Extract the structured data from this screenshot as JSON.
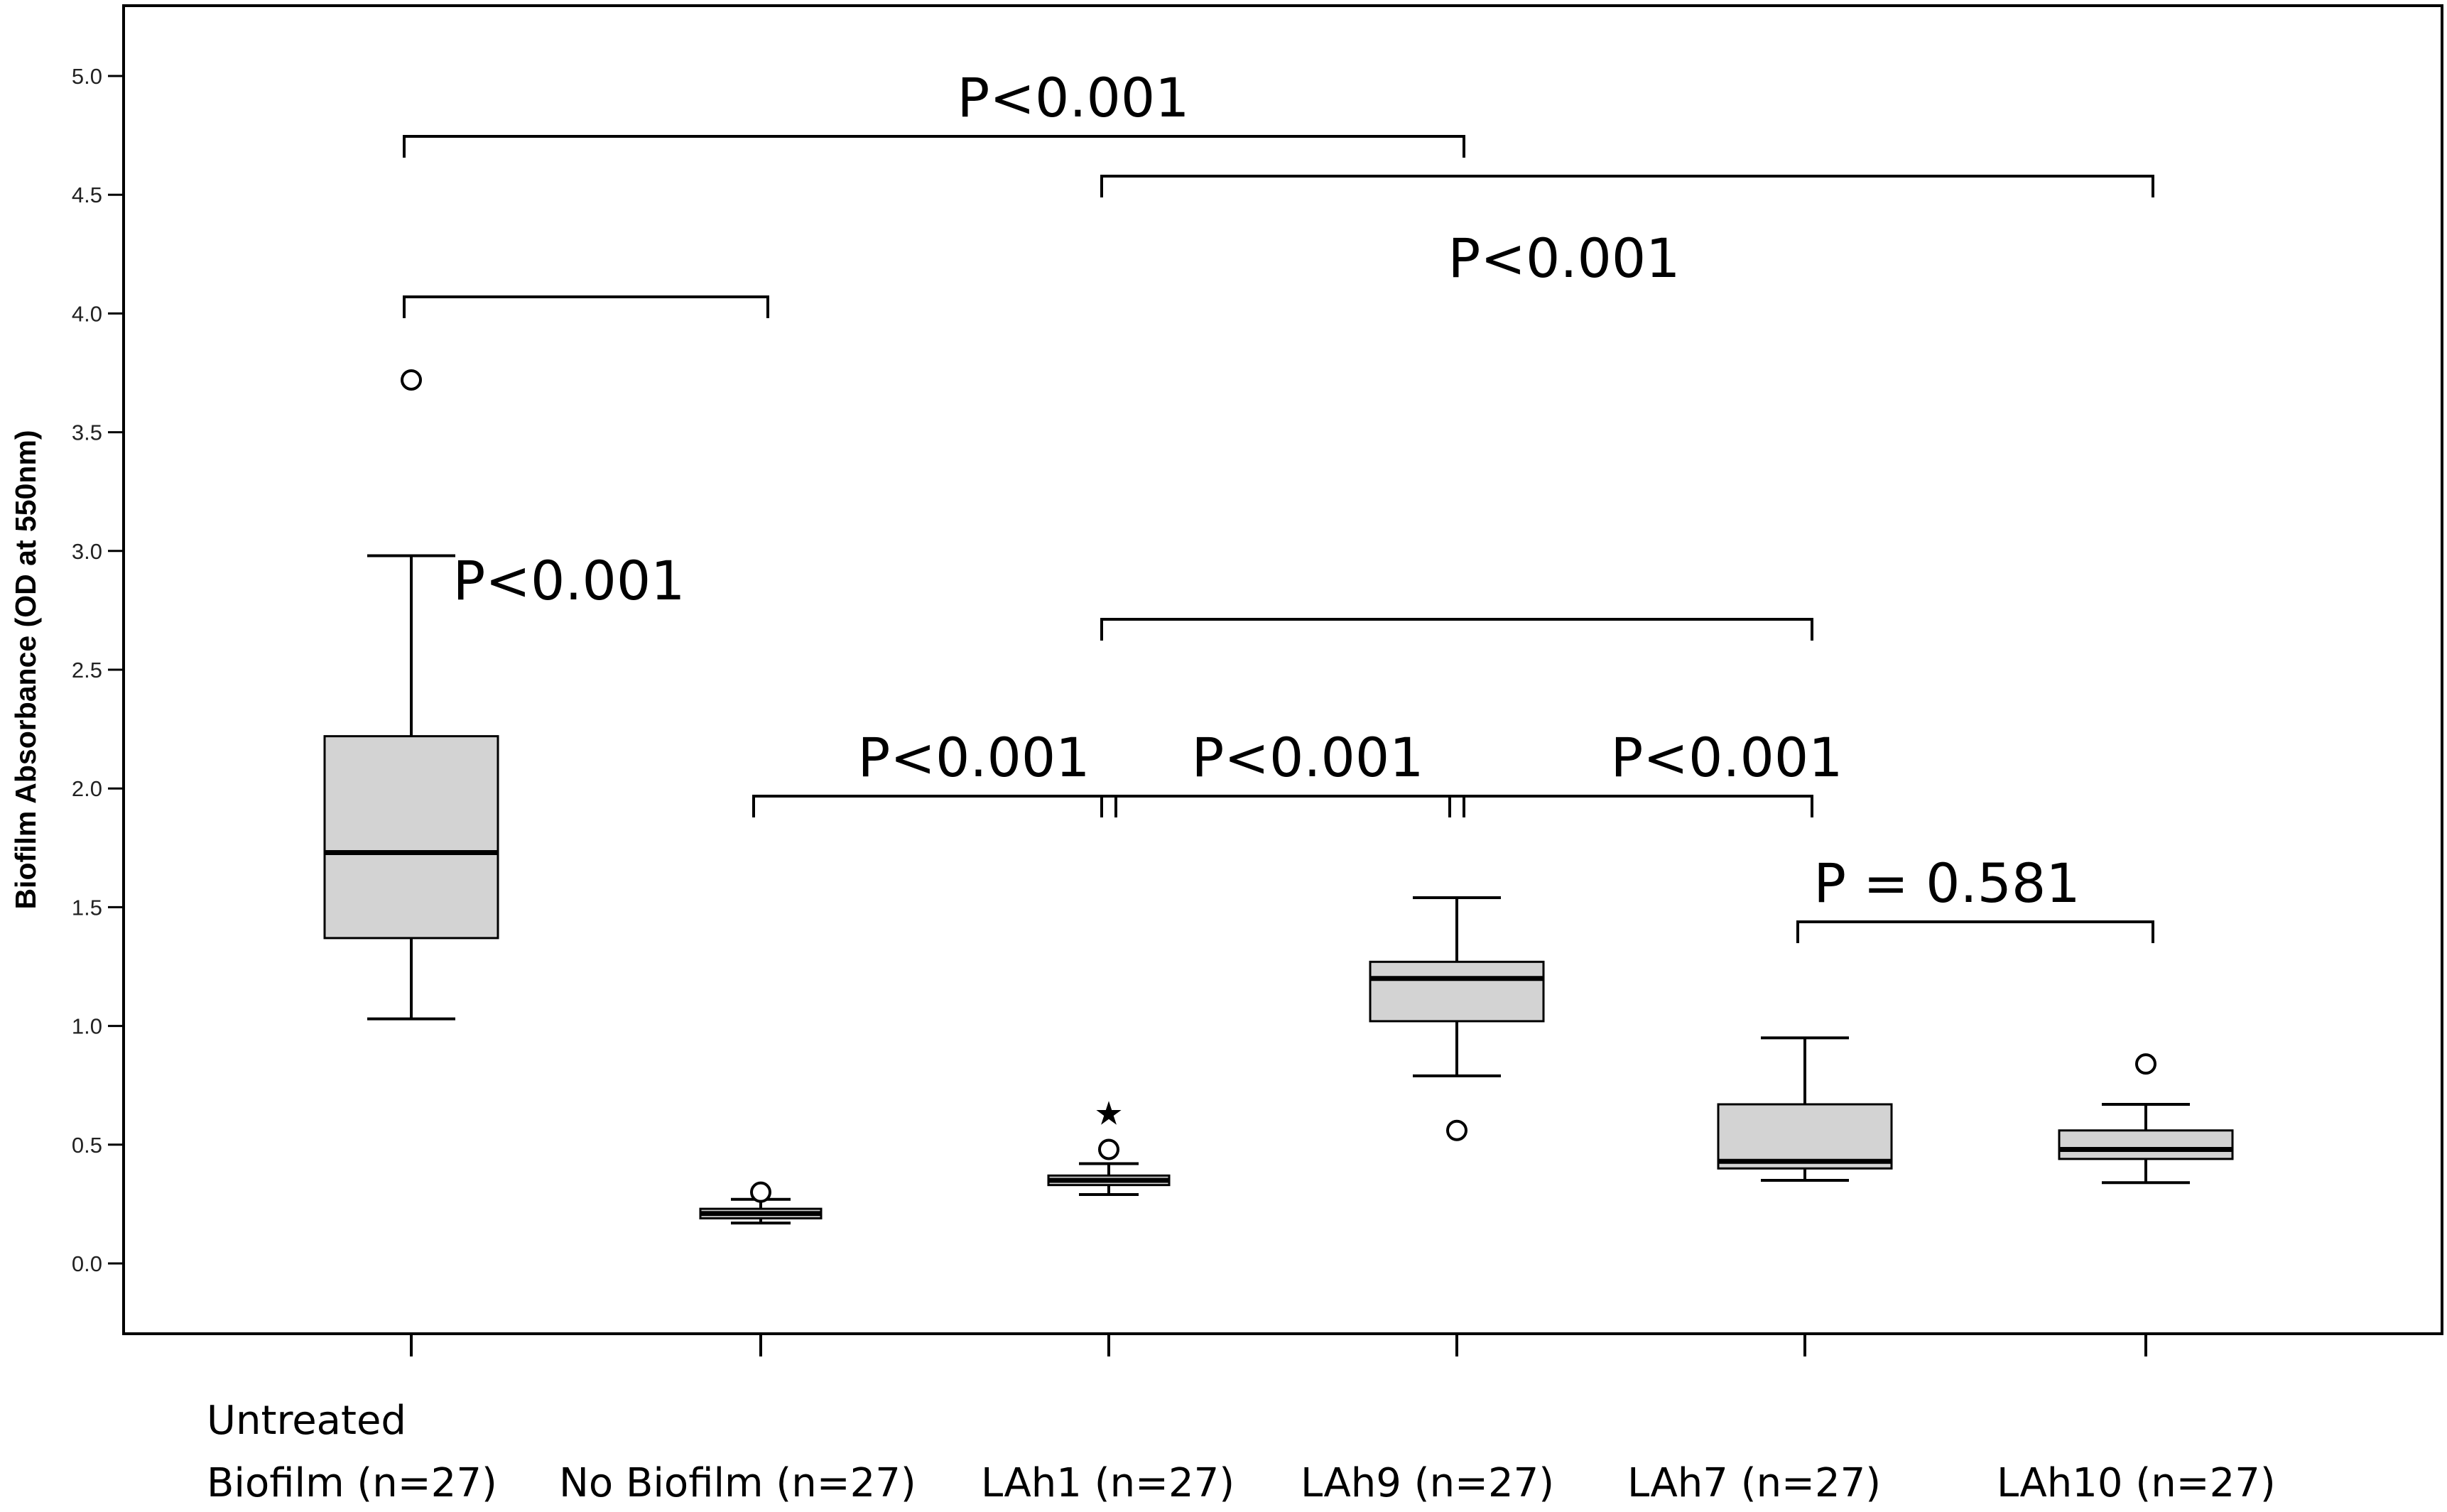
{
  "chart_data": {
    "type": "box",
    "ylabel": "Biofilm Absorbance (OD at 550nm)",
    "xlabel": "",
    "ylim": [
      -0.25,
      5.3
    ],
    "yticks": [
      "0.0",
      "0.5",
      "1.0",
      "1.5",
      "2.0",
      "2.5",
      "3.0",
      "3.5",
      "4.0",
      "4.5",
      "5.0"
    ],
    "grid": false,
    "categories": [
      {
        "line1": "Untreated",
        "line2": "Biofilm (n=27)"
      },
      {
        "line1": "",
        "line2": "No Biofilm (n=27)"
      },
      {
        "line1": "",
        "line2": "LAh1 (n=27)"
      },
      {
        "line1": "",
        "line2": "LAh9 (n=27)"
      },
      {
        "line1": "",
        "line2": "LAh7 (n=27)"
      },
      {
        "line1": "",
        "line2": "LAh10 (n=27)"
      }
    ],
    "boxes": [
      {
        "whisker_low": 1.03,
        "q1": 1.37,
        "median": 1.73,
        "q3": 2.22,
        "whisker_high": 2.98,
        "outliers": [
          {
            "value": 3.72,
            "marker": "circle"
          }
        ]
      },
      {
        "whisker_low": 0.17,
        "q1": 0.19,
        "median": 0.21,
        "q3": 0.23,
        "whisker_high": 0.27,
        "outliers": [
          {
            "value": 0.3,
            "marker": "circle"
          }
        ]
      },
      {
        "whisker_low": 0.29,
        "q1": 0.33,
        "median": 0.35,
        "q3": 0.37,
        "whisker_high": 0.42,
        "outliers": [
          {
            "value": 0.48,
            "marker": "circle"
          },
          {
            "value": 0.65,
            "marker": "star"
          }
        ]
      },
      {
        "whisker_low": 0.79,
        "q1": 1.02,
        "median": 1.2,
        "q3": 1.27,
        "whisker_high": 1.54,
        "outliers": [
          {
            "value": 0.56,
            "marker": "circle"
          }
        ]
      },
      {
        "whisker_low": 0.35,
        "q1": 0.4,
        "median": 0.43,
        "q3": 0.67,
        "whisker_high": 0.95,
        "outliers": []
      },
      {
        "whisker_low": 0.34,
        "q1": 0.44,
        "median": 0.48,
        "q3": 0.56,
        "whisker_high": 0.67,
        "outliers": [
          {
            "value": 0.84,
            "marker": "circle"
          }
        ]
      }
    ],
    "comparisons": [
      {
        "from": 0,
        "to": 3,
        "label": "P<0.001"
      },
      {
        "from": 2,
        "to": 5,
        "label": ""
      },
      {
        "from": 0,
        "to": 1,
        "label": "P<0.001"
      },
      {
        "from": 2,
        "to": 4,
        "label": "P<0.001"
      },
      {
        "from": 1,
        "to": 2,
        "label": "P<0.001"
      },
      {
        "from": 2,
        "to": 3,
        "label": "P<0.001"
      },
      {
        "from": 3,
        "to": 4,
        "label": "P<0.001"
      },
      {
        "from": 4,
        "to": 5,
        "label": "P = 0.581"
      }
    ],
    "colors": {
      "box_fill": "#d3d3d3",
      "stroke": "#000000"
    }
  }
}
